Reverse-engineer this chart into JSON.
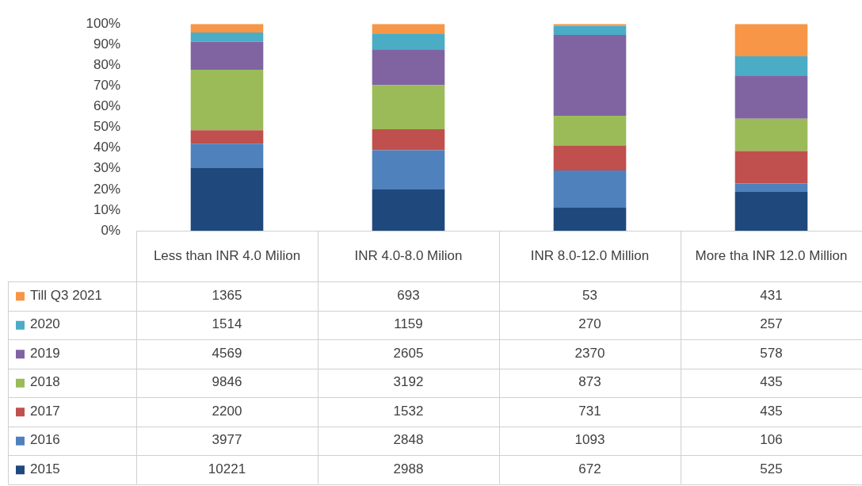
{
  "chart_data": {
    "type": "bar",
    "stacked": true,
    "legend": "bottom left",
    "categories": [
      "Less than INR 4.0 Milion",
      "INR 4.0-8.0 Milion",
      "INR 8.0-12.0 Million",
      "More tha INR 12.0 Million"
    ],
    "series": [
      {
        "name": "2015",
        "color": "#1f497d",
        "values": [
          30.3,
          19.9,
          11.1,
          19.0
        ]
      },
      {
        "name": "2016",
        "color": "#4f81bd",
        "values": [
          11.8,
          19.0,
          18.0,
          3.8
        ]
      },
      {
        "name": "2017",
        "color": "#c0504d",
        "values": [
          6.5,
          10.2,
          12.1,
          15.7
        ]
      },
      {
        "name": "2018",
        "color": "#9bbb59",
        "values": [
          29.2,
          21.3,
          14.4,
          15.7
        ]
      },
      {
        "name": "2019",
        "color": "#8064a2",
        "values": [
          13.6,
          17.3,
          39.1,
          20.9
        ]
      },
      {
        "name": "2020",
        "color": "#4bacc6",
        "values": [
          4.5,
          7.7,
          4.4,
          9.3
        ]
      },
      {
        "name": "Till Q3 2021",
        "color": "#f79646",
        "values": [
          4.1,
          4.6,
          0.9,
          15.6
        ]
      }
    ],
    "annotations": [
      "1365",
      "693",
      "53",
      "431",
      "1514",
      "1159",
      "270",
      "257",
      "4569",
      "2605",
      "2370",
      "578",
      "9846",
      "3192",
      "873",
      "435",
      "2200",
      "1532",
      "731",
      "435",
      "3977",
      "2848",
      "1093",
      "106",
      "10221",
      "2988",
      "672",
      "525"
    ],
    "ylim": [
      0,
      100
    ],
    "yticks": [
      {
        "value": 0,
        "label": "0%"
      },
      {
        "value": 10,
        "label": "10%"
      },
      {
        "value": 20,
        "label": "20%"
      },
      {
        "value": 30,
        "label": "30%"
      },
      {
        "value": 40,
        "label": "40%"
      },
      {
        "value": 50,
        "label": "50%"
      },
      {
        "value": 60,
        "label": "60%"
      },
      {
        "value": 70,
        "label": "70%"
      },
      {
        "value": 80,
        "label": "80%"
      },
      {
        "value": 90,
        "label": "90%"
      },
      {
        "value": 100,
        "label": "100%"
      }
    ]
  }
}
